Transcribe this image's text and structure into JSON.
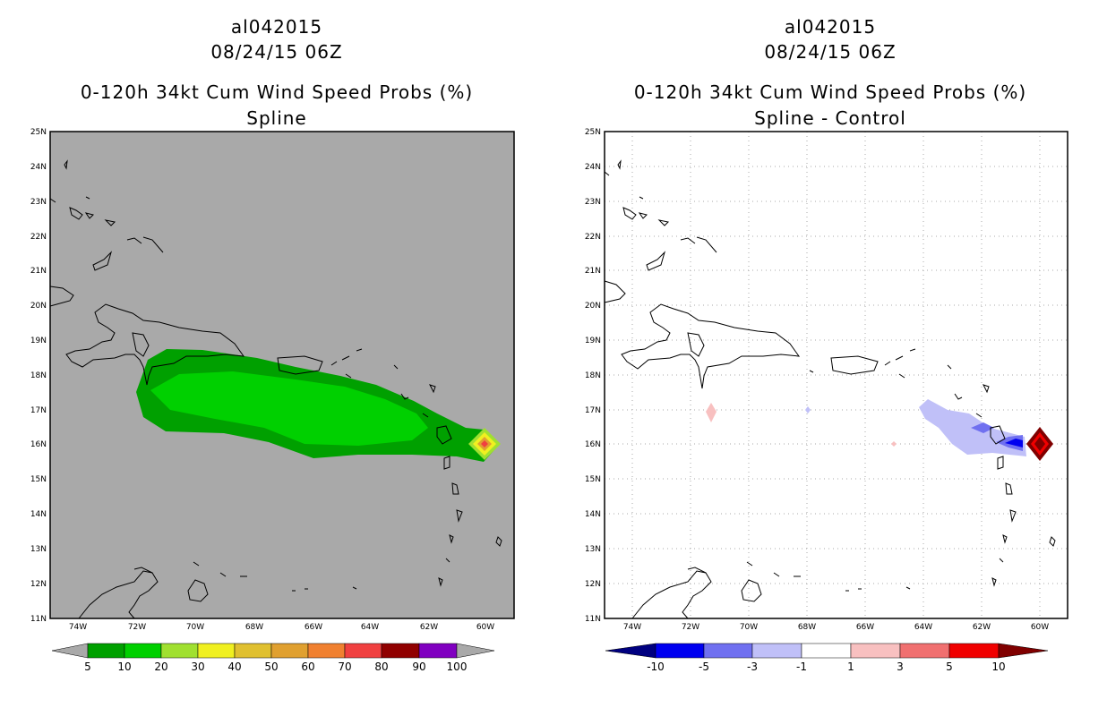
{
  "panels": [
    {
      "storm_id": "al042015",
      "datetime": "08/24/15 06Z",
      "product": "0-120h 34kt Cum Wind Speed Probs (%)",
      "subtitle": "Spline",
      "lat_labels": [
        "25N",
        "24N",
        "23N",
        "22N",
        "21N",
        "20N",
        "19N",
        "18N",
        "17N",
        "16N",
        "15N",
        "14N",
        "13N",
        "12N",
        "11N"
      ],
      "lon_labels": [
        "74W",
        "72W",
        "70W",
        "68W",
        "66W",
        "64W",
        "62W",
        "60W"
      ],
      "colorbar": {
        "labels": [
          "5",
          "10",
          "20",
          "30",
          "40",
          "50",
          "60",
          "70",
          "80",
          "90",
          "100"
        ],
        "colors": [
          "#a9a9a9",
          "#00a000",
          "#00d000",
          "#a0e030",
          "#f0f020",
          "#e0c030",
          "#e0a030",
          "#f08030",
          "#f04040",
          "#900000",
          "#8000c0",
          "#a9a9a9"
        ]
      }
    },
    {
      "storm_id": "al042015",
      "datetime": "08/24/15 06Z",
      "product": "0-120h 34kt Cum Wind Speed Probs (%)",
      "subtitle": "Spline - Control",
      "lat_labels": [
        "25N",
        "24N",
        "23N",
        "22N",
        "21N",
        "20N",
        "19N",
        "18N",
        "17N",
        "16N",
        "15N",
        "14N",
        "13N",
        "12N",
        "11N"
      ],
      "lon_labels": [
        "74W",
        "72W",
        "70W",
        "68W",
        "66W",
        "64W",
        "62W",
        "60W"
      ],
      "colorbar": {
        "labels": [
          "-10",
          "-5",
          "-3",
          "-1",
          "1",
          "3",
          "5",
          "10"
        ],
        "colors": [
          "#000080",
          "#0000f0",
          "#7070f0",
          "#c0c0f8",
          "#ffffff",
          "#f8c0c0",
          "#f07070",
          "#f00000",
          "#800000"
        ]
      }
    }
  ]
}
